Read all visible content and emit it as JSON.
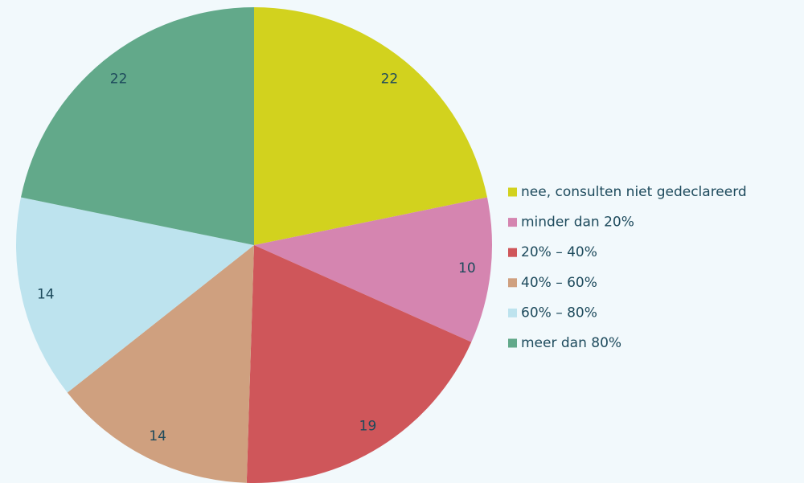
{
  "chart_data": {
    "type": "pie",
    "categories": [
      "nee, consulten niet gedeclareerd",
      "minder dan 20%",
      "20% – 40%",
      "40% – 60%",
      "60% – 80%",
      "meer dan 80%"
    ],
    "values": [
      22,
      10,
      19,
      14,
      14,
      22
    ],
    "colors": [
      "#d2d21e",
      "#d585b0",
      "#cf565a",
      "#cfa07f",
      "#bde3ee",
      "#62a98a"
    ],
    "legend": "right"
  }
}
